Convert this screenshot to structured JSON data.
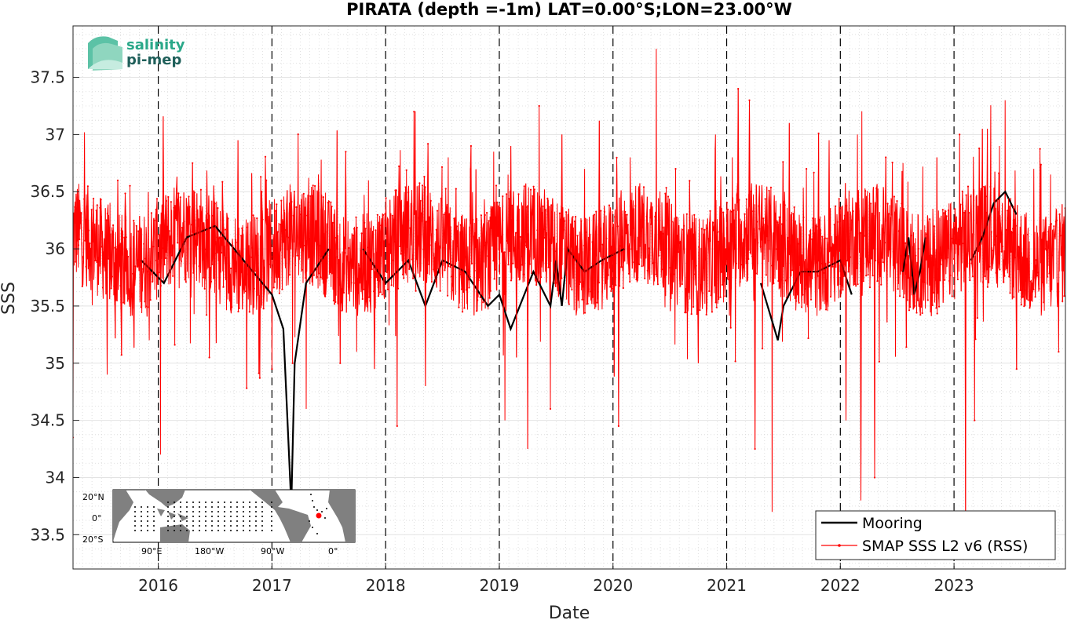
{
  "chart_data": {
    "type": "line",
    "title": "PIRATA (depth =-1m) LAT=0.00°S;LON=23.00°W",
    "xlabel": "Date",
    "ylabel": "SSS",
    "xlim": [
      2015.25,
      2023.98
    ],
    "ylim": [
      33.2,
      37.95
    ],
    "x_ticks": [
      2016,
      2017,
      2018,
      2019,
      2020,
      2021,
      2022,
      2023
    ],
    "x_tick_labels": [
      "2016",
      "2017",
      "2018",
      "2019",
      "2020",
      "2021",
      "2022",
      "2023"
    ],
    "y_ticks": [
      33.5,
      34,
      34.5,
      35,
      35.5,
      36,
      36.5,
      37,
      37.5
    ],
    "y_tick_labels": [
      "33.5",
      "34",
      "34.5",
      "35",
      "35.5",
      "36",
      "36.5",
      "37",
      "37.5"
    ],
    "grid": true,
    "year_boundaries": [
      2016,
      2017,
      2018,
      2019,
      2020,
      2021,
      2022,
      2023
    ],
    "legend_location": "bottom-right",
    "series": [
      {
        "name": "Mooring",
        "color": "#000000",
        "style": "thick line",
        "segments": [
          {
            "x": [
              2015.85,
              2016.05,
              2016.25,
              2016.5,
              2016.75,
              2017.0,
              2017.1,
              2017.15,
              2017.17,
              2017.2,
              2017.3,
              2017.5
            ],
            "y": [
              35.9,
              35.7,
              36.1,
              36.2,
              35.9,
              35.6,
              35.3,
              34.2,
              33.75,
              35.0,
              35.7,
              36.0
            ]
          },
          {
            "x": [
              2017.8,
              2018.0,
              2018.2,
              2018.35,
              2018.5,
              2018.7,
              2018.9,
              2019.0,
              2019.1,
              2019.3,
              2019.45,
              2019.5,
              2019.55,
              2019.6,
              2019.75,
              2019.9,
              2020.1
            ],
            "y": [
              36.0,
              35.7,
              35.9,
              35.5,
              35.9,
              35.8,
              35.5,
              35.6,
              35.3,
              35.8,
              35.5,
              35.9,
              35.5,
              36.0,
              35.8,
              35.9,
              36.0
            ]
          },
          {
            "x": [
              2021.3,
              2021.45,
              2021.5,
              2021.65,
              2021.8,
              2022.0,
              2022.1
            ],
            "y": [
              35.7,
              35.2,
              35.5,
              35.8,
              35.8,
              35.9,
              35.6
            ]
          },
          {
            "x": [
              2022.55,
              2022.6,
              2022.65,
              2022.7,
              2022.75
            ],
            "y": [
              35.8,
              36.1,
              35.6,
              35.8,
              36.1
            ]
          },
          {
            "x": [
              2023.15,
              2023.25,
              2023.35,
              2023.45,
              2023.55
            ],
            "y": [
              35.9,
              36.1,
              36.4,
              36.5,
              36.3
            ]
          }
        ]
      },
      {
        "name": "SMAP SSS L2 v6 (RSS)",
        "color": "#ff0000",
        "style": "thin line with dot markers",
        "x_start": 2015.25,
        "x_end": 2023.98,
        "baseline": 36.0,
        "noise_amplitude": 0.45,
        "spikes": [
          {
            "x": 2015.25,
            "y": 34.35
          },
          {
            "x": 2015.35,
            "y": 37.02
          },
          {
            "x": 2015.55,
            "y": 34.9
          },
          {
            "x": 2016.02,
            "y": 34.2
          },
          {
            "x": 2016.3,
            "y": 36.75
          },
          {
            "x": 2016.45,
            "y": 35.05
          },
          {
            "x": 2016.7,
            "y": 36.95
          },
          {
            "x": 2016.95,
            "y": 36.6
          },
          {
            "x": 2017.0,
            "y": 34.95
          },
          {
            "x": 2017.18,
            "y": 35.0
          },
          {
            "x": 2017.3,
            "y": 34.6
          },
          {
            "x": 2017.6,
            "y": 35.0
          },
          {
            "x": 2017.65,
            "y": 36.85
          },
          {
            "x": 2017.85,
            "y": 36.6
          },
          {
            "x": 2017.9,
            "y": 34.95
          },
          {
            "x": 2018.1,
            "y": 34.45
          },
          {
            "x": 2018.25,
            "y": 37.2
          },
          {
            "x": 2018.35,
            "y": 37.25
          },
          {
            "x": 2018.35,
            "y": 34.8
          },
          {
            "x": 2018.55,
            "y": 36.8
          },
          {
            "x": 2018.75,
            "y": 36.9
          },
          {
            "x": 2018.95,
            "y": 36.85
          },
          {
            "x": 2019.0,
            "y": 36.4
          },
          {
            "x": 2019.05,
            "y": 34.5
          },
          {
            "x": 2019.1,
            "y": 36.9
          },
          {
            "x": 2019.15,
            "y": 35.05
          },
          {
            "x": 2019.25,
            "y": 34.25
          },
          {
            "x": 2019.35,
            "y": 37.25
          },
          {
            "x": 2019.45,
            "y": 34.6
          },
          {
            "x": 2019.55,
            "y": 37.0
          },
          {
            "x": 2019.75,
            "y": 36.7
          },
          {
            "x": 2020.05,
            "y": 34.45
          },
          {
            "x": 2020.15,
            "y": 36.8
          },
          {
            "x": 2020.38,
            "y": 37.75
          },
          {
            "x": 2020.55,
            "y": 36.7
          },
          {
            "x": 2020.75,
            "y": 35.0
          },
          {
            "x": 2020.9,
            "y": 37.0
          },
          {
            "x": 2021.05,
            "y": 36.8
          },
          {
            "x": 2021.1,
            "y": 37.4
          },
          {
            "x": 2021.2,
            "y": 37.3
          },
          {
            "x": 2021.25,
            "y": 34.25
          },
          {
            "x": 2021.4,
            "y": 33.7
          },
          {
            "x": 2021.55,
            "y": 37.1
          },
          {
            "x": 2021.7,
            "y": 36.7
          },
          {
            "x": 2021.9,
            "y": 36.95
          },
          {
            "x": 2022.05,
            "y": 34.5
          },
          {
            "x": 2022.15,
            "y": 37.0
          },
          {
            "x": 2022.18,
            "y": 33.8
          },
          {
            "x": 2022.3,
            "y": 34.0
          },
          {
            "x": 2022.4,
            "y": 36.8
          },
          {
            "x": 2022.55,
            "y": 36.75
          },
          {
            "x": 2022.85,
            "y": 36.8
          },
          {
            "x": 2023.05,
            "y": 37.0
          },
          {
            "x": 2023.1,
            "y": 33.6
          },
          {
            "x": 2023.18,
            "y": 34.5
          },
          {
            "x": 2023.25,
            "y": 37.05
          },
          {
            "x": 2023.4,
            "y": 36.9
          },
          {
            "x": 2023.45,
            "y": 37.3
          },
          {
            "x": 2023.55,
            "y": 34.95
          },
          {
            "x": 2023.7,
            "y": 36.7
          },
          {
            "x": 2023.85,
            "y": 36.65
          },
          {
            "x": 2023.92,
            "y": 35.1
          }
        ]
      }
    ]
  },
  "logo": {
    "line1": "salinity",
    "line2": "pi-mep",
    "color1": "#2aa889",
    "color2": "#1f5f5a"
  },
  "inset_map": {
    "lat_labels": [
      "20°N",
      "0°",
      "20°S"
    ],
    "lon_labels": [
      "90°E",
      "180°W",
      "90°W",
      "0°"
    ],
    "land_color": "#808080",
    "ocean_color": "#ffffff",
    "marker_color": "#ff0000"
  },
  "legend": {
    "entries": [
      "Mooring",
      "SMAP SSS L2 v6 (RSS)"
    ]
  }
}
